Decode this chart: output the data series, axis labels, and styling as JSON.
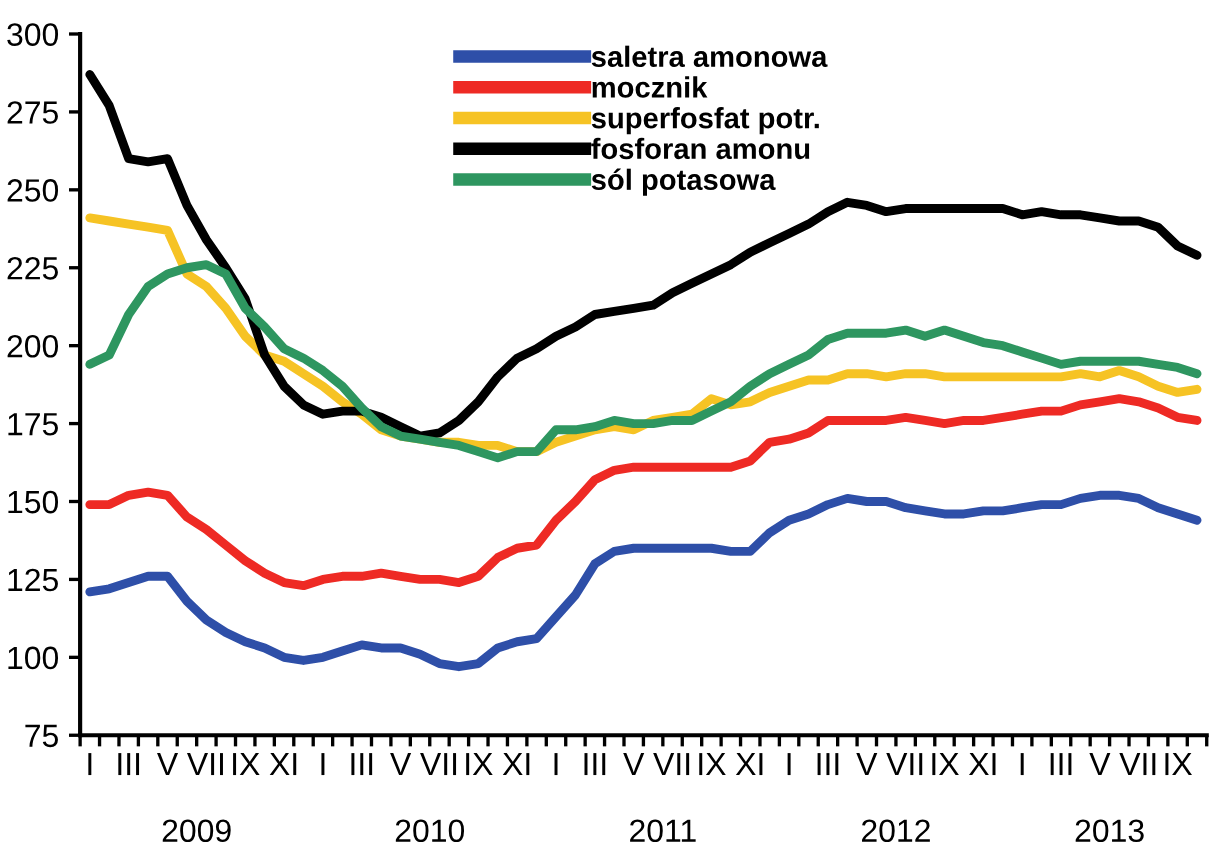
{
  "chart_data": {
    "type": "line",
    "categories": [
      "I",
      null,
      "III",
      null,
      "V",
      null,
      "VII",
      null,
      "IX",
      null,
      "XI",
      null,
      "I",
      null,
      "III",
      null,
      "V",
      null,
      "VII",
      null,
      "IX",
      null,
      "XI",
      null,
      "I",
      null,
      "III",
      null,
      "V",
      null,
      "VII",
      null,
      "IX",
      null,
      "XI",
      null,
      "I",
      null,
      "III",
      null,
      "V",
      null,
      "VII",
      null,
      "IX",
      null,
      "XI",
      null,
      "I",
      null,
      "III",
      null,
      "V",
      null,
      "VII",
      null,
      "IX",
      null
    ],
    "annotations": [
      "2009",
      "2010",
      "2011",
      "2012",
      "2013"
    ],
    "ylim": [
      75,
      300
    ],
    "yticks": [
      75,
      100,
      125,
      150,
      175,
      200,
      225,
      250,
      275,
      300
    ],
    "grid": false,
    "legend": "top",
    "marker": "none",
    "line_style": "solid",
    "series": [
      {
        "name": "saletra amonowa",
        "color": "#2e4fa8",
        "values": [
          121,
          122,
          124,
          126,
          126,
          118,
          112,
          108,
          105,
          103,
          100,
          99,
          100,
          102,
          104,
          103,
          103,
          101,
          98,
          97,
          98,
          103,
          105,
          106,
          113,
          120,
          130,
          134,
          135,
          135,
          135,
          135,
          135,
          134,
          134,
          140,
          144,
          146,
          149,
          151,
          150,
          150,
          148,
          147,
          146,
          146,
          147,
          147,
          148,
          149,
          149,
          151,
          152,
          152,
          151,
          148,
          146,
          144
        ]
      },
      {
        "name": "mocznik",
        "color": "#ee2a24",
        "values": [
          149,
          149,
          152,
          153,
          152,
          145,
          141,
          136,
          131,
          127,
          124,
          123,
          125,
          126,
          126,
          127,
          126,
          125,
          125,
          124,
          126,
          132,
          135,
          136,
          144,
          150,
          157,
          160,
          161,
          161,
          161,
          161,
          161,
          161,
          163,
          169,
          170,
          172,
          176,
          176,
          176,
          176,
          177,
          176,
          175,
          176,
          176,
          177,
          178,
          179,
          179,
          181,
          182,
          183,
          182,
          180,
          177,
          176
        ]
      },
      {
        "name": "superfosfat potr.",
        "color": "#f6c324",
        "values": [
          241,
          240,
          239,
          238,
          237,
          223,
          219,
          212,
          203,
          197,
          195,
          191,
          187,
          182,
          178,
          173,
          171,
          170,
          169,
          169,
          168,
          168,
          166,
          166,
          169,
          171,
          173,
          174,
          173,
          176,
          177,
          178,
          183,
          181,
          182,
          185,
          187,
          189,
          189,
          191,
          191,
          190,
          191,
          191,
          190,
          190,
          190,
          190,
          190,
          190,
          190,
          191,
          190,
          192,
          190,
          187,
          185,
          186
        ]
      },
      {
        "name": "fosforan amonu",
        "color": "#000000",
        "values": [
          287,
          277,
          260,
          259,
          260,
          245,
          234,
          225,
          215,
          197,
          187,
          181,
          178,
          179,
          179,
          177,
          174,
          171,
          172,
          176,
          182,
          190,
          196,
          199,
          203,
          206,
          210,
          211,
          212,
          213,
          217,
          220,
          223,
          226,
          230,
          233,
          236,
          239,
          243,
          246,
          245,
          243,
          244,
          244,
          244,
          244,
          244,
          244,
          242,
          243,
          242,
          242,
          241,
          240,
          240,
          238,
          232,
          229
        ]
      },
      {
        "name": "sól potasowa",
        "color": "#2e9660",
        "values": [
          194,
          197,
          210,
          219,
          223,
          225,
          226,
          223,
          212,
          206,
          199,
          196,
          192,
          187,
          180,
          174,
          171,
          170,
          169,
          168,
          166,
          164,
          166,
          166,
          173,
          173,
          174,
          176,
          175,
          175,
          176,
          176,
          179,
          182,
          187,
          191,
          194,
          197,
          202,
          204,
          204,
          204,
          205,
          203,
          205,
          203,
          201,
          200,
          198,
          196,
          194,
          195,
          195,
          195,
          195,
          194,
          193,
          191
        ]
      }
    ]
  }
}
